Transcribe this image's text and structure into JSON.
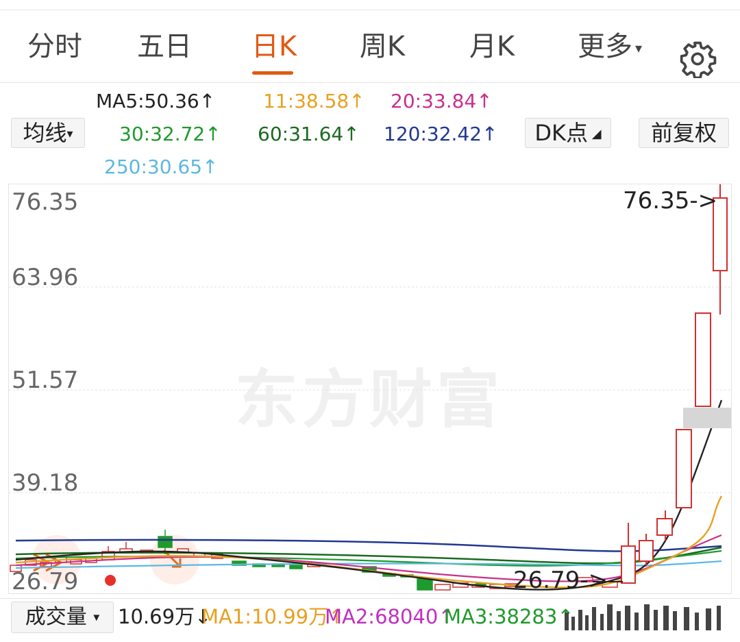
{
  "tabs": [
    {
      "label": "分时"
    },
    {
      "label": "五日"
    },
    {
      "label": "日K"
    },
    {
      "label": "周K"
    },
    {
      "label": "月K"
    },
    {
      "label": "更多"
    }
  ],
  "active_tab": "日K",
  "ma_labels": {
    "ma5": "MA5:50.36↑",
    "ma11": "11:38.58↑",
    "ma20": "20:33.84↑",
    "ma30": "30:32.72↑",
    "ma60": "60:31.64↑",
    "ma120": "120:32.42↑",
    "ma250": "250:30.65↑"
  },
  "ma_colors": {
    "ma5": "#222222",
    "ma11": "#e8a020",
    "ma20": "#c8308c",
    "ma30": "#1f9a2c",
    "ma60": "#1a6a20",
    "ma120": "#203890",
    "ma250": "#5bb8e0"
  },
  "buttons": {
    "junxian": "均线",
    "dk_point": "DK点",
    "fuquan": "前复权"
  },
  "chart": {
    "y_labels": [
      "76.35",
      "63.96",
      "51.57",
      "39.18",
      "26.79"
    ],
    "max_annotation": "76.35->",
    "min_annotation": "26.79->",
    "watermark": "东方财富"
  },
  "chart_data": {
    "type": "candlestick",
    "y_ticks": [
      76.35,
      63.96,
      51.57,
      39.18,
      26.79
    ],
    "ylim": [
      26.79,
      76.35
    ],
    "recent_candles": [
      {
        "open": 27.5,
        "close": 30.5,
        "high": 34.0,
        "low": 27.0
      },
      {
        "open": 29.5,
        "close": 31.5,
        "high": 32.8,
        "low": 28.5
      },
      {
        "open": 31.5,
        "close": 35.0,
        "high": 36.5,
        "low": 31.0
      },
      {
        "open": 35.0,
        "close": 46.5,
        "high": 47.0,
        "low": 34.5
      },
      {
        "open": 48.0,
        "close": 60.5,
        "high": 61.0,
        "low": 47.5
      },
      {
        "open": 66.0,
        "close": 75.0,
        "high": 76.35,
        "low": 60.0
      }
    ]
  },
  "volume": {
    "button": "成交量",
    "value": "10.69万↓",
    "ma1": "MA1:10.99万↑",
    "ma2": "MA2:68040↑",
    "ma3": "MA3:38283↑"
  },
  "volume_colors": {
    "value": "#222222",
    "ma1": "#e8a020",
    "ma2": "#c030c0",
    "ma3": "#1f9a2c"
  }
}
